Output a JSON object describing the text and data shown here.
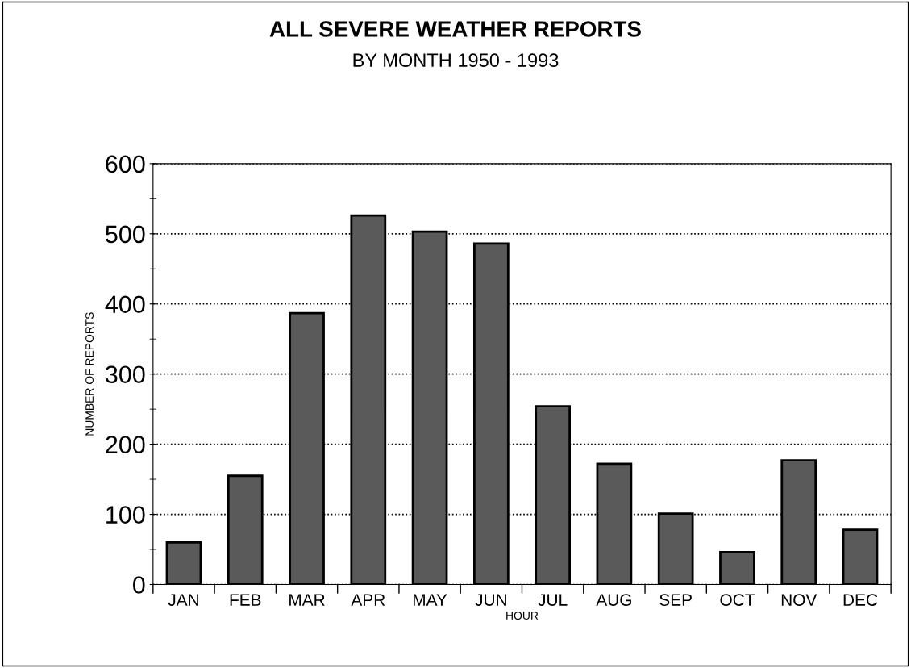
{
  "chart_data": {
    "type": "bar",
    "title": "ALL SEVERE WEATHER REPORTS",
    "subtitle": "BY MONTH 1950 - 1993",
    "xlabel": "HOUR",
    "ylabel": "NUMBER OF REPORTS",
    "categories": [
      "JAN",
      "FEB",
      "MAR",
      "APR",
      "MAY",
      "JUN",
      "JUL",
      "AUG",
      "SEP",
      "OCT",
      "NOV",
      "DEC"
    ],
    "values": [
      60,
      155,
      387,
      526,
      503,
      486,
      254,
      172,
      101,
      46,
      177,
      78
    ],
    "color": "#5a5a5a",
    "ylim": [
      0,
      600
    ],
    "yticks": [
      0,
      100,
      200,
      300,
      400,
      500,
      600
    ],
    "grid": "y",
    "line_style": "dotted"
  }
}
